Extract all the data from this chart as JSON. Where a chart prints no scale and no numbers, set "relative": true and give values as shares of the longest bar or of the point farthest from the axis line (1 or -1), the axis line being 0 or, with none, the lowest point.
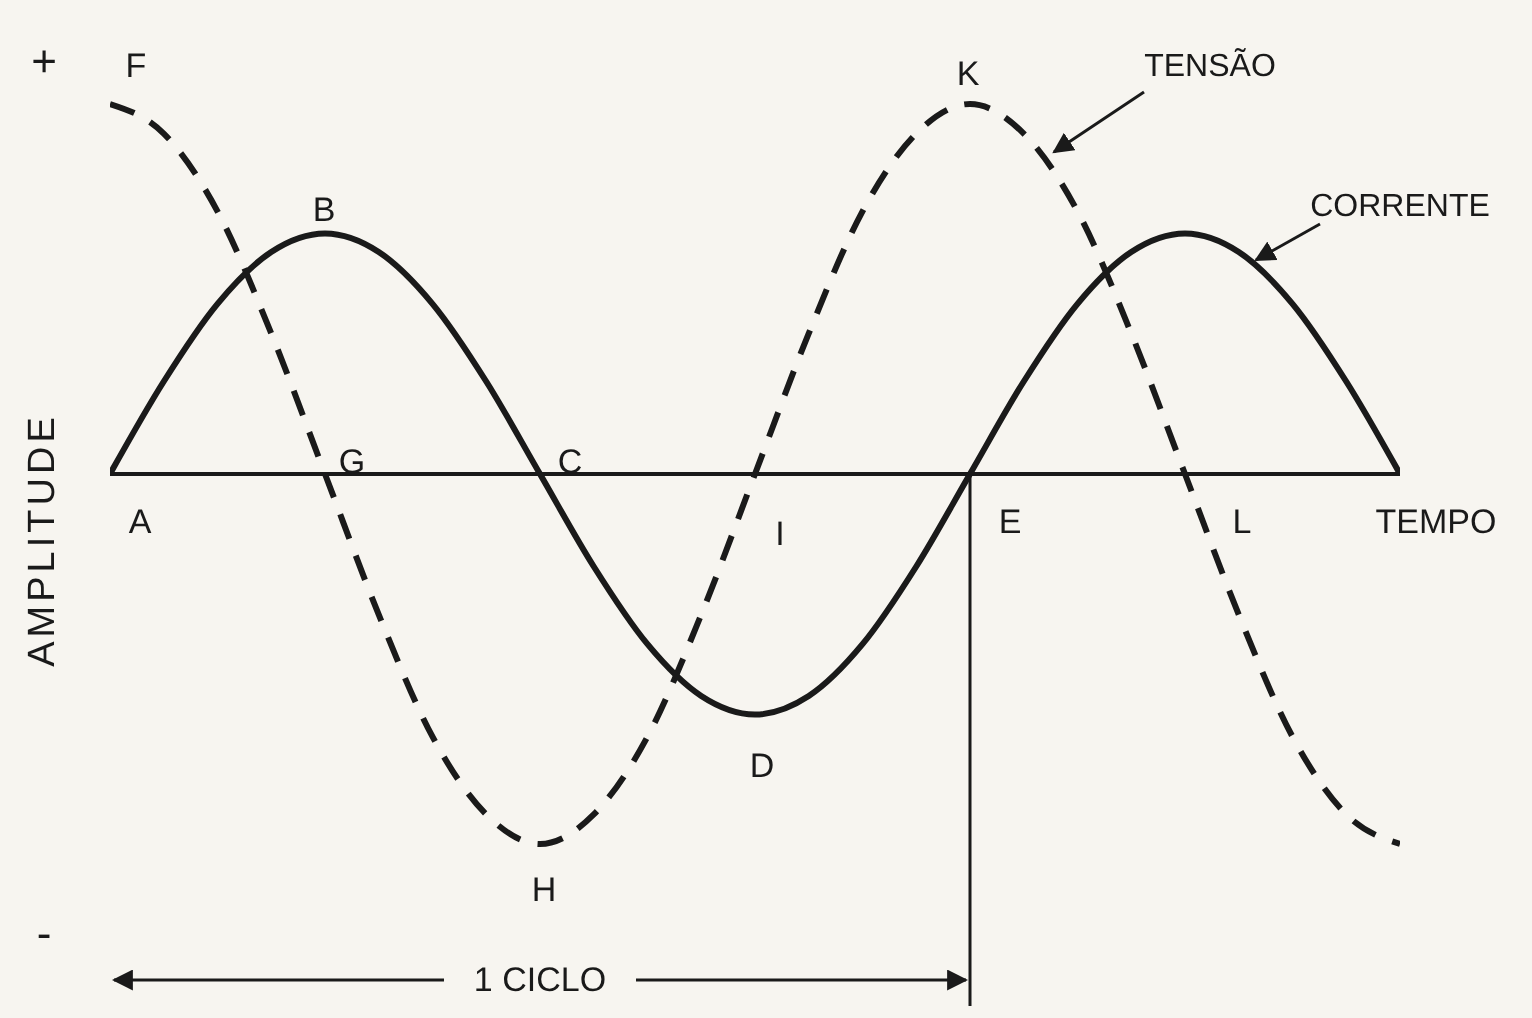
{
  "chart_data": {
    "type": "line",
    "relative": true,
    "xlabel": "TEMPO",
    "ylabel": "AMPLITUDE",
    "categories": [
      null,
      null,
      null,
      null,
      null,
      null,
      null,
      null,
      null,
      null,
      null,
      null,
      null,
      null,
      null,
      null,
      null,
      null,
      null,
      null,
      null,
      null,
      null,
      null,
      null
    ],
    "series": [
      {
        "name": "TENSÃO",
        "color": "#1a1a1a",
        "line_style": "dashed",
        "values": [
          1,
          0.92,
          0.71,
          0.38,
          0,
          -0.38,
          -0.71,
          -0.92,
          -1,
          -0.92,
          -0.71,
          -0.38,
          0,
          0.38,
          0.71,
          0.92,
          1,
          0.92,
          0.71,
          0.38,
          0,
          -0.38,
          -0.71,
          -0.92,
          -1
        ]
      },
      {
        "name": "CORRENTE",
        "color": "#1a1a1a",
        "line_style": "solid",
        "values": [
          0,
          0.25,
          0.46,
          0.6,
          0.65,
          0.6,
          0.46,
          0.25,
          0,
          -0.25,
          -0.46,
          -0.6,
          -0.65,
          -0.6,
          -0.46,
          -0.25,
          0,
          0.25,
          0.46,
          0.6,
          0.65,
          0.6,
          0.46,
          0.25,
          0
        ]
      }
    ],
    "annotations": [
      "+",
      "-",
      "A",
      "B",
      "C",
      "D",
      "E",
      "F",
      "G",
      "H",
      "I",
      "K",
      "L",
      "1 CICLO"
    ]
  }
}
